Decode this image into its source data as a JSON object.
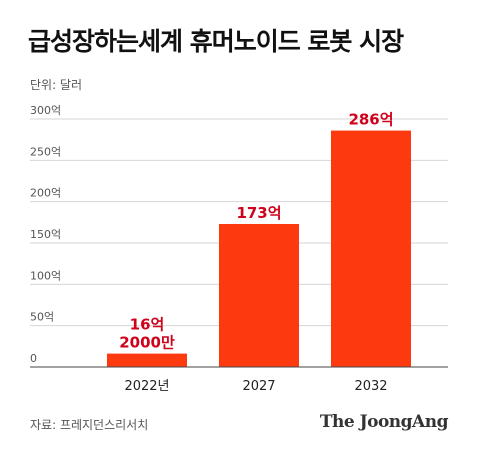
{
  "title": "급성장하는세계 휴머노이드 로봇 시장",
  "unit_label": "단위: 달러",
  "source": "자료: 프레지던스리서치",
  "brand": "The JoongAng",
  "chart_data": {
    "type": "bar",
    "title": "급성장하는세계 휴머노이드 로봇 시장",
    "categories": [
      "2022년",
      "2027",
      "2032"
    ],
    "values": [
      16.2,
      173,
      286
    ],
    "data_labels": [
      [
        "16억",
        "2000만"
      ],
      [
        "173억"
      ],
      [
        "286억"
      ]
    ],
    "ylim": [
      0,
      300
    ],
    "yticks": [
      0,
      50,
      100,
      150,
      200,
      250,
      300
    ],
    "ytick_labels": [
      "0",
      "50억",
      "100억",
      "150억",
      "200억",
      "250억",
      "300억"
    ],
    "grid": true,
    "bar_color": "#fd3a0f",
    "label_color": "#d0021b"
  }
}
